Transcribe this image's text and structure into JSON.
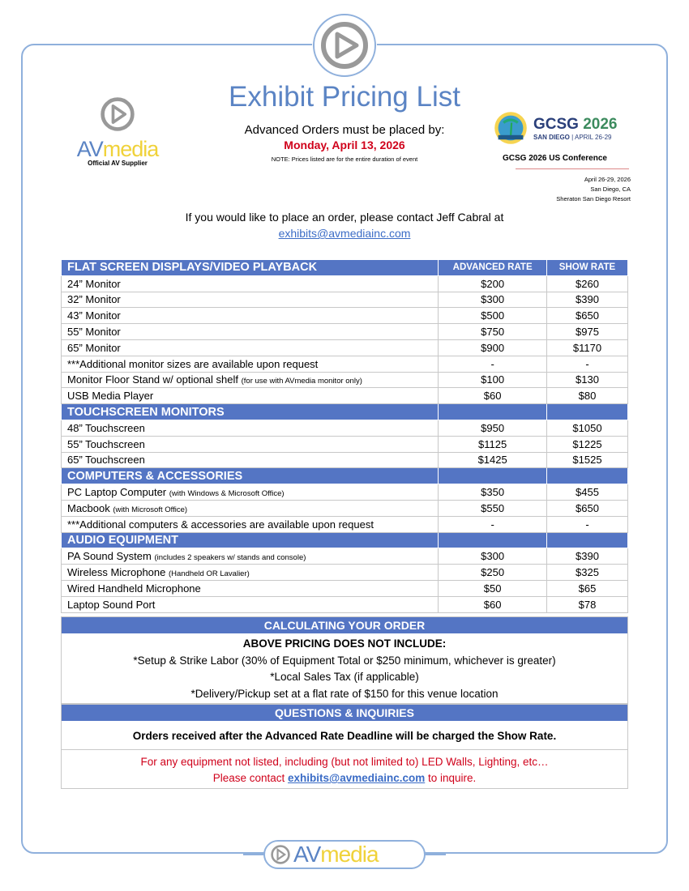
{
  "header": {
    "title": "Exhibit Pricing List",
    "advanced_orders": "Advanced Orders must be placed by:",
    "deadline": "Monday, April 13, 2026",
    "note": "NOTE: Prices listed are for the entire duration of event"
  },
  "logo": {
    "brand_av": "AV",
    "brand_media": "media",
    "tagline": "Official AV Supplier"
  },
  "event": {
    "logo_title": "GCSG",
    "logo_year": "2026",
    "logo_city": "SAN DIEGO",
    "logo_dates": "| APRIL 26-29",
    "conference": "GCSG 2026 US Conference",
    "dates": "April 26-29, 2026",
    "city": "San Diego, CA",
    "venue": "Sheraton San Diego Resort"
  },
  "contact": {
    "text": "If you would like to place an order, please contact Jeff Cabral at",
    "email": "exhibits@avmediainc.com"
  },
  "columns": {
    "advanced": "ADVANCED RATE",
    "show": "SHOW RATE"
  },
  "sections": [
    {
      "title": "FLAT SCREEN DISPLAYS/VIDEO PLAYBACK",
      "items": [
        {
          "name": "24” Monitor",
          "note": "",
          "adv": "$200",
          "show": "$260"
        },
        {
          "name": "32” Monitor",
          "note": "",
          "adv": "$300",
          "show": "$390"
        },
        {
          "name": "43” Monitor",
          "note": "",
          "adv": "$500",
          "show": "$650"
        },
        {
          "name": "55” Monitor",
          "note": "",
          "adv": "$750",
          "show": "$975"
        },
        {
          "name": "65” Monitor",
          "note": "",
          "adv": "$900",
          "show": "$1170"
        },
        {
          "name": "***Additional monitor sizes are available upon request",
          "note": "",
          "adv": "-",
          "show": "-"
        },
        {
          "name": "Monitor Floor Stand w/ optional shelf",
          "note": "(for use with AVmedia monitor only)",
          "adv": "$100",
          "show": "$130"
        },
        {
          "name": "USB Media Player",
          "note": "",
          "adv": "$60",
          "show": "$80"
        }
      ]
    },
    {
      "title": "TOUCHSCREEN MONITORS",
      "items": [
        {
          "name": "48” Touchscreen",
          "note": "",
          "adv": "$950",
          "show": "$1050"
        },
        {
          "name": "55” Touchscreen",
          "note": "",
          "adv": "$1125",
          "show": "$1225"
        },
        {
          "name": "65” Touchscreen",
          "note": "",
          "adv": "$1425",
          "show": "$1525"
        }
      ]
    },
    {
      "title": "COMPUTERS & ACCESSORIES",
      "items": [
        {
          "name": "PC Laptop Computer",
          "note": "(with Windows & Microsoft Office)",
          "adv": "$350",
          "show": "$455"
        },
        {
          "name": "Macbook",
          "note": "(with Microsoft Office)",
          "adv": "$550",
          "show": "$650"
        },
        {
          "name": "***Additional computers & accessories are available upon request",
          "note": "",
          "adv": "-",
          "show": "-"
        }
      ]
    },
    {
      "title": "AUDIO EQUIPMENT",
      "items": [
        {
          "name": "PA Sound System",
          "note": "(includes 2 speakers w/ stands and console)",
          "adv": "$300",
          "show": "$390"
        },
        {
          "name": "Wireless Microphone",
          "note": "(Handheld OR Lavalier)",
          "adv": "$250",
          "show": "$325"
        },
        {
          "name": "Wired Handheld Microphone",
          "note": "",
          "adv": "$50",
          "show": "$65"
        },
        {
          "name": "Laptop Sound Port",
          "note": "",
          "adv": "$60",
          "show": "$78"
        }
      ]
    }
  ],
  "calculating": {
    "title": "CALCULATING YOUR ORDER",
    "subtitle": "ABOVE PRICING DOES NOT INCLUDE:",
    "lines": [
      "*Setup & Strike Labor (30% of Equipment Total or $250 minimum, whichever is greater)",
      "*Local Sales Tax (if applicable)",
      "*Delivery/Pickup set at a flat rate of $150 for this venue location"
    ]
  },
  "questions": {
    "title": "QUESTIONS & INQUIRIES",
    "policy": "Orders received after the Advanced Rate Deadline will be charged the Show Rate.",
    "red_line1": "For any equipment not listed, including (but not limited to) LED Walls, Lighting, etc…",
    "red_line2_pre": "Please contact ",
    "email": "exhibits@avmediainc.com",
    "red_line2_post": " to inquire."
  },
  "footer": {
    "brand_av": "AV",
    "brand_media": "media"
  },
  "colors": {
    "accent": "#5475c4",
    "title": "#5b84c4",
    "alert": "#d0021b",
    "brand_yellow": "#f0d23a"
  }
}
